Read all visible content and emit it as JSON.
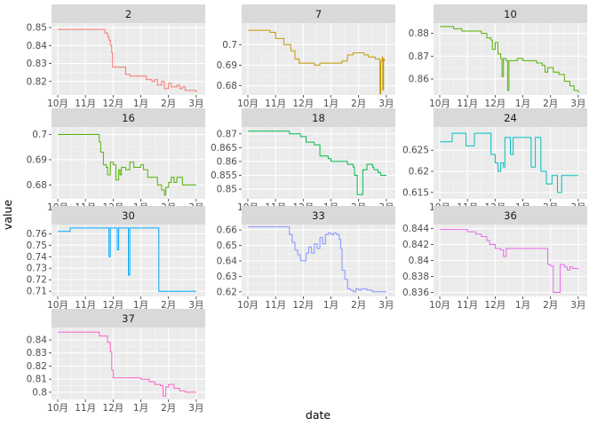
{
  "chart_data": {
    "type": "line",
    "layout": "facet_wrap",
    "xlabel": "date",
    "ylabel": "value",
    "x_ticks": [
      "10月",
      "11月",
      "12月",
      "1月",
      "2月",
      "3月"
    ],
    "x_range": [
      0,
      5.1
    ],
    "grid": true,
    "legend": "none",
    "panels": [
      {
        "title": "2",
        "color": "#F8766D",
        "ylim": [
          0.8125,
          0.8525
        ],
        "y_ticks": [
          0.82,
          0.83,
          0.84,
          0.85
        ],
        "points": [
          [
            0,
            0.849
          ],
          [
            1.55,
            0.849
          ],
          [
            1.7,
            0.847
          ],
          [
            1.8,
            0.845
          ],
          [
            1.85,
            0.843
          ],
          [
            1.9,
            0.84
          ],
          [
            1.95,
            0.836
          ],
          [
            1.98,
            0.828
          ],
          [
            2.3,
            0.828
          ],
          [
            2.45,
            0.824
          ],
          [
            2.6,
            0.823
          ],
          [
            3.1,
            0.823
          ],
          [
            3.2,
            0.821
          ],
          [
            3.4,
            0.82
          ],
          [
            3.5,
            0.821
          ],
          [
            3.6,
            0.818
          ],
          [
            3.75,
            0.82
          ],
          [
            3.85,
            0.816
          ],
          [
            4.0,
            0.819
          ],
          [
            4.1,
            0.817
          ],
          [
            4.3,
            0.818
          ],
          [
            4.4,
            0.816
          ],
          [
            4.5,
            0.817
          ],
          [
            4.6,
            0.815
          ],
          [
            4.8,
            0.815
          ],
          [
            5.0,
            0.814
          ]
        ]
      },
      {
        "title": "7",
        "color": "#C49A00",
        "ylim": [
          0.6755,
          0.7105
        ],
        "y_ticks": [
          0.68,
          0.69,
          0.7
        ],
        "points": [
          [
            0,
            0.707
          ],
          [
            0.6,
            0.707
          ],
          [
            0.8,
            0.706
          ],
          [
            1.0,
            0.703
          ],
          [
            1.3,
            0.7
          ],
          [
            1.55,
            0.697
          ],
          [
            1.7,
            0.693
          ],
          [
            1.85,
            0.691
          ],
          [
            2.2,
            0.691
          ],
          [
            2.4,
            0.69
          ],
          [
            2.6,
            0.691
          ],
          [
            3.2,
            0.691
          ],
          [
            3.4,
            0.692
          ],
          [
            3.6,
            0.695
          ],
          [
            3.8,
            0.696
          ],
          [
            4.2,
            0.695
          ],
          [
            4.35,
            0.694
          ],
          [
            4.5,
            0.694
          ],
          [
            4.6,
            0.693
          ],
          [
            4.75,
            0.693
          ],
          [
            4.77,
            0.676
          ],
          [
            4.8,
            0.692
          ],
          [
            4.85,
            0.694
          ],
          [
            4.87,
            0.678
          ],
          [
            4.9,
            0.693
          ],
          [
            4.93,
            0.692
          ]
        ]
      },
      {
        "title": "10",
        "color": "#53B400",
        "ylim": [
          0.853,
          0.8845
        ],
        "y_ticks": [
          0.86,
          0.87,
          0.88
        ],
        "points": [
          [
            0,
            0.883
          ],
          [
            0.35,
            0.883
          ],
          [
            0.5,
            0.882
          ],
          [
            0.8,
            0.881
          ],
          [
            1.2,
            0.881
          ],
          [
            1.5,
            0.88
          ],
          [
            1.7,
            0.878
          ],
          [
            1.85,
            0.877
          ],
          [
            1.9,
            0.873
          ],
          [
            2.0,
            0.876
          ],
          [
            2.1,
            0.871
          ],
          [
            2.2,
            0.869
          ],
          [
            2.25,
            0.861
          ],
          [
            2.3,
            0.869
          ],
          [
            2.4,
            0.868
          ],
          [
            2.45,
            0.855
          ],
          [
            2.5,
            0.868
          ],
          [
            2.8,
            0.869
          ],
          [
            3.0,
            0.868
          ],
          [
            3.3,
            0.868
          ],
          [
            3.5,
            0.867
          ],
          [
            3.7,
            0.866
          ],
          [
            3.8,
            0.863
          ],
          [
            3.9,
            0.865
          ],
          [
            4.1,
            0.863
          ],
          [
            4.3,
            0.862
          ],
          [
            4.5,
            0.859
          ],
          [
            4.7,
            0.857
          ],
          [
            4.85,
            0.855
          ],
          [
            5.0,
            0.854
          ]
        ]
      },
      {
        "title": "16",
        "color": "#00C094",
        "line_color": "#53B400",
        "ylim": [
          0.6745,
          0.703
        ],
        "y_ticks": [
          0.68,
          0.69,
          0.7
        ],
        "points": [
          [
            0,
            0.7
          ],
          [
            1.45,
            0.7
          ],
          [
            1.5,
            0.697
          ],
          [
            1.55,
            0.693
          ],
          [
            1.65,
            0.688
          ],
          [
            1.75,
            0.687
          ],
          [
            1.8,
            0.684
          ],
          [
            1.9,
            0.689
          ],
          [
            2.0,
            0.688
          ],
          [
            2.1,
            0.682
          ],
          [
            2.2,
            0.686
          ],
          [
            2.25,
            0.684
          ],
          [
            2.3,
            0.687
          ],
          [
            2.45,
            0.686
          ],
          [
            2.6,
            0.689
          ],
          [
            2.75,
            0.687
          ],
          [
            3.0,
            0.688
          ],
          [
            3.1,
            0.686
          ],
          [
            3.25,
            0.683
          ],
          [
            3.5,
            0.683
          ],
          [
            3.6,
            0.68
          ],
          [
            3.75,
            0.678
          ],
          [
            3.85,
            0.676
          ],
          [
            3.9,
            0.679
          ],
          [
            4.0,
            0.681
          ],
          [
            4.1,
            0.683
          ],
          [
            4.2,
            0.681
          ],
          [
            4.3,
            0.683
          ],
          [
            4.5,
            0.68
          ],
          [
            4.7,
            0.68
          ],
          [
            5.0,
            0.68
          ]
        ]
      },
      {
        "title": "18",
        "color": "#00BB4E",
        "ylim": [
          0.8465,
          0.8725
        ],
        "y_ticks": [
          0.85,
          0.855,
          0.86,
          0.865,
          0.87
        ],
        "points": [
          [
            0,
            0.871
          ],
          [
            0.8,
            0.871
          ],
          [
            1.5,
            0.87
          ],
          [
            1.9,
            0.869
          ],
          [
            2.1,
            0.867
          ],
          [
            2.4,
            0.866
          ],
          [
            2.6,
            0.862
          ],
          [
            2.9,
            0.861
          ],
          [
            3.0,
            0.86
          ],
          [
            3.4,
            0.86
          ],
          [
            3.6,
            0.859
          ],
          [
            3.8,
            0.858
          ],
          [
            3.85,
            0.855
          ],
          [
            3.95,
            0.848
          ],
          [
            4.1,
            0.848
          ],
          [
            4.15,
            0.857
          ],
          [
            4.3,
            0.859
          ],
          [
            4.5,
            0.858
          ],
          [
            4.55,
            0.857
          ],
          [
            4.6,
            0.857
          ],
          [
            4.7,
            0.856
          ],
          [
            4.8,
            0.855
          ],
          [
            5.0,
            0.855
          ]
        ]
      },
      {
        "title": "24",
        "color": "#00BFC4",
        "ylim": [
          0.6135,
          0.6305
        ],
        "y_ticks": [
          0.615,
          0.62,
          0.625
        ],
        "points": [
          [
            0,
            0.627
          ],
          [
            0.4,
            0.627
          ],
          [
            0.45,
            0.629
          ],
          [
            0.9,
            0.629
          ],
          [
            0.95,
            0.626
          ],
          [
            1.2,
            0.626
          ],
          [
            1.25,
            0.629
          ],
          [
            1.8,
            0.629
          ],
          [
            1.85,
            0.624
          ],
          [
            2.0,
            0.622
          ],
          [
            2.1,
            0.62
          ],
          [
            2.2,
            0.622
          ],
          [
            2.3,
            0.621
          ],
          [
            2.35,
            0.628
          ],
          [
            2.5,
            0.628
          ],
          [
            2.55,
            0.624
          ],
          [
            2.65,
            0.628
          ],
          [
            3.25,
            0.628
          ],
          [
            3.3,
            0.621
          ],
          [
            3.4,
            0.621
          ],
          [
            3.45,
            0.628
          ],
          [
            3.6,
            0.628
          ],
          [
            3.65,
            0.62
          ],
          [
            3.8,
            0.62
          ],
          [
            3.85,
            0.617
          ],
          [
            4.0,
            0.617
          ],
          [
            4.05,
            0.619
          ],
          [
            4.2,
            0.619
          ],
          [
            4.25,
            0.615
          ],
          [
            4.35,
            0.615
          ],
          [
            4.4,
            0.619
          ],
          [
            5.0,
            0.619
          ]
        ]
      },
      {
        "title": "30",
        "color": "#00A9FF",
        "ylim": [
          0.7055,
          0.768
        ],
        "y_ticks": [
          0.71,
          0.72,
          0.73,
          0.74,
          0.75,
          0.76
        ],
        "points": [
          [
            0,
            0.762
          ],
          [
            0.4,
            0.762
          ],
          [
            0.45,
            0.765
          ],
          [
            1.8,
            0.765
          ],
          [
            1.85,
            0.74
          ],
          [
            1.9,
            0.765
          ],
          [
            2.1,
            0.765
          ],
          [
            2.15,
            0.746
          ],
          [
            2.2,
            0.765
          ],
          [
            2.5,
            0.765
          ],
          [
            2.55,
            0.724
          ],
          [
            2.6,
            0.765
          ],
          [
            3.6,
            0.765
          ],
          [
            3.65,
            0.71
          ],
          [
            5.0,
            0.71
          ]
        ]
      },
      {
        "title": "33",
        "color": "#8494FF",
        "ylim": [
          0.617,
          0.6635
        ],
        "y_ticks": [
          0.62,
          0.63,
          0.64,
          0.65,
          0.66
        ],
        "points": [
          [
            0,
            0.662
          ],
          [
            1.4,
            0.662
          ],
          [
            1.5,
            0.657
          ],
          [
            1.6,
            0.652
          ],
          [
            1.7,
            0.647
          ],
          [
            1.8,
            0.644
          ],
          [
            1.9,
            0.64
          ],
          [
            2.0,
            0.64
          ],
          [
            2.1,
            0.645
          ],
          [
            2.2,
            0.649
          ],
          [
            2.3,
            0.645
          ],
          [
            2.4,
            0.651
          ],
          [
            2.5,
            0.648
          ],
          [
            2.6,
            0.655
          ],
          [
            2.7,
            0.651
          ],
          [
            2.8,
            0.657
          ],
          [
            2.9,
            0.658
          ],
          [
            3.0,
            0.657
          ],
          [
            3.1,
            0.658
          ],
          [
            3.2,
            0.657
          ],
          [
            3.3,
            0.654
          ],
          [
            3.35,
            0.648
          ],
          [
            3.4,
            0.634
          ],
          [
            3.5,
            0.628
          ],
          [
            3.6,
            0.622
          ],
          [
            3.7,
            0.621
          ],
          [
            3.8,
            0.62
          ],
          [
            3.9,
            0.622
          ],
          [
            4.0,
            0.621
          ],
          [
            4.1,
            0.622
          ],
          [
            4.3,
            0.621
          ],
          [
            4.5,
            0.62
          ],
          [
            5.0,
            0.62
          ]
        ]
      },
      {
        "title": "36",
        "color": "#ED68ED",
        "ylim": [
          0.8355,
          0.8445
        ],
        "y_ticks": [
          0.836,
          0.838,
          0.84,
          0.842,
          0.844
        ],
        "points": [
          [
            0,
            0.8439
          ],
          [
            0.8,
            0.8439
          ],
          [
            1.0,
            0.8436
          ],
          [
            1.3,
            0.8433
          ],
          [
            1.5,
            0.843
          ],
          [
            1.7,
            0.8425
          ],
          [
            1.8,
            0.842
          ],
          [
            2.0,
            0.8415
          ],
          [
            2.2,
            0.8413
          ],
          [
            2.3,
            0.8405
          ],
          [
            2.4,
            0.8415
          ],
          [
            3.5,
            0.8415
          ],
          [
            3.8,
            0.8415
          ],
          [
            3.9,
            0.8395
          ],
          [
            4.0,
            0.8393
          ],
          [
            4.1,
            0.836
          ],
          [
            4.3,
            0.836
          ],
          [
            4.35,
            0.8395
          ],
          [
            4.5,
            0.8392
          ],
          [
            4.6,
            0.8388
          ],
          [
            4.7,
            0.8392
          ],
          [
            4.8,
            0.839
          ],
          [
            5.0,
            0.8389
          ]
        ]
      },
      {
        "title": "37",
        "color": "#FF61CC",
        "ylim": [
          0.7945,
          0.8495
        ],
        "y_ticks": [
          0.8,
          0.81,
          0.82,
          0.83,
          0.84
        ],
        "points": [
          [
            0,
            0.846
          ],
          [
            1.2,
            0.846
          ],
          [
            1.5,
            0.843
          ],
          [
            1.8,
            0.838
          ],
          [
            1.9,
            0.831
          ],
          [
            1.95,
            0.817
          ],
          [
            2.0,
            0.811
          ],
          [
            2.5,
            0.811
          ],
          [
            3.0,
            0.81
          ],
          [
            3.3,
            0.808
          ],
          [
            3.5,
            0.806
          ],
          [
            3.7,
            0.805
          ],
          [
            3.8,
            0.797
          ],
          [
            3.9,
            0.804
          ],
          [
            4.0,
            0.806
          ],
          [
            4.2,
            0.803
          ],
          [
            4.4,
            0.801
          ],
          [
            4.6,
            0.8
          ],
          [
            5.0,
            0.8
          ]
        ]
      }
    ]
  }
}
